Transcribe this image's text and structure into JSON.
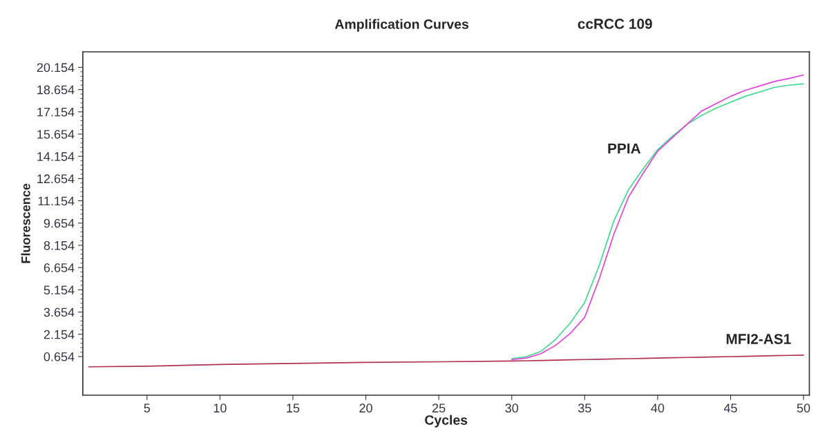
{
  "chart_data": {
    "type": "line",
    "title": "Amplification Curves",
    "subtitle": "ccRCC 109",
    "xlabel": "Cycles",
    "ylabel": "Fluorescence",
    "x": [
      1,
      5,
      10,
      15,
      20,
      25,
      30,
      31,
      32,
      33,
      34,
      35,
      36,
      37,
      38,
      39,
      40,
      41,
      42,
      43,
      44,
      45,
      46,
      47,
      48,
      49,
      50
    ],
    "series": [
      {
        "color": "#40d890",
        "x": [
          30,
          31,
          32,
          33,
          34,
          35,
          36,
          37,
          38,
          39,
          40,
          41,
          42,
          43,
          44,
          45,
          46,
          47,
          48,
          49,
          50
        ],
        "values": [
          0.5,
          0.65,
          1.0,
          1.8,
          2.9,
          4.3,
          6.8,
          9.8,
          11.9,
          13.3,
          14.6,
          15.5,
          16.3,
          16.9,
          17.4,
          17.8,
          18.2,
          18.5,
          18.8,
          18.95,
          19.04
        ]
      },
      {
        "color": "#e040e0",
        "x": [
          30,
          31,
          32,
          33,
          34,
          35,
          36,
          37,
          38,
          39,
          40,
          41,
          42,
          43,
          44,
          45,
          46,
          47,
          48,
          49,
          50
        ],
        "values": [
          0.45,
          0.55,
          0.85,
          1.4,
          2.2,
          3.3,
          5.9,
          8.9,
          11.4,
          13.0,
          14.5,
          15.4,
          16.3,
          17.2,
          17.7,
          18.2,
          18.6,
          18.9,
          19.2,
          19.4,
          19.64
        ]
      },
      {
        "color": "#b03050",
        "values": [
          -0.04,
          0.0,
          0.12,
          0.19,
          0.26,
          0.3,
          0.35,
          0.37,
          0.39,
          0.41,
          0.43,
          0.45,
          0.47,
          0.49,
          0.51,
          0.53,
          0.55,
          0.57,
          0.59,
          0.61,
          0.63,
          0.65,
          0.67,
          0.69,
          0.71,
          0.73,
          0.75
        ]
      }
    ],
    "annotations": [
      "PPIA",
      "MFI2-AS1"
    ],
    "xlim": [
      0.6,
      50.4
    ],
    "ylim": [
      -1.95,
      21.2
    ],
    "xticks": [
      5,
      10,
      15,
      20,
      25,
      30,
      35,
      40,
      45,
      50
    ],
    "yticks": [
      {
        "value": 0.654,
        "label": "0.654"
      },
      {
        "value": 2.154,
        "label": "2.154"
      },
      {
        "value": 3.654,
        "label": "3.654"
      },
      {
        "value": 5.154,
        "label": "5.154"
      },
      {
        "value": 6.654,
        "label": "6.654"
      },
      {
        "value": 8.154,
        "label": "8.154"
      },
      {
        "value": 9.654,
        "label": "9.654"
      },
      {
        "value": 11.154,
        "label": "11.154"
      },
      {
        "value": 12.654,
        "label": "12.654"
      },
      {
        "value": 14.154,
        "label": "14.154"
      },
      {
        "value": 15.654,
        "label": "15.654"
      },
      {
        "value": 17.154,
        "label": "17.154"
      },
      {
        "value": 18.654,
        "label": "18.654"
      },
      {
        "value": 20.154,
        "label": "20.154"
      }
    ],
    "grid": false,
    "legend": false
  }
}
